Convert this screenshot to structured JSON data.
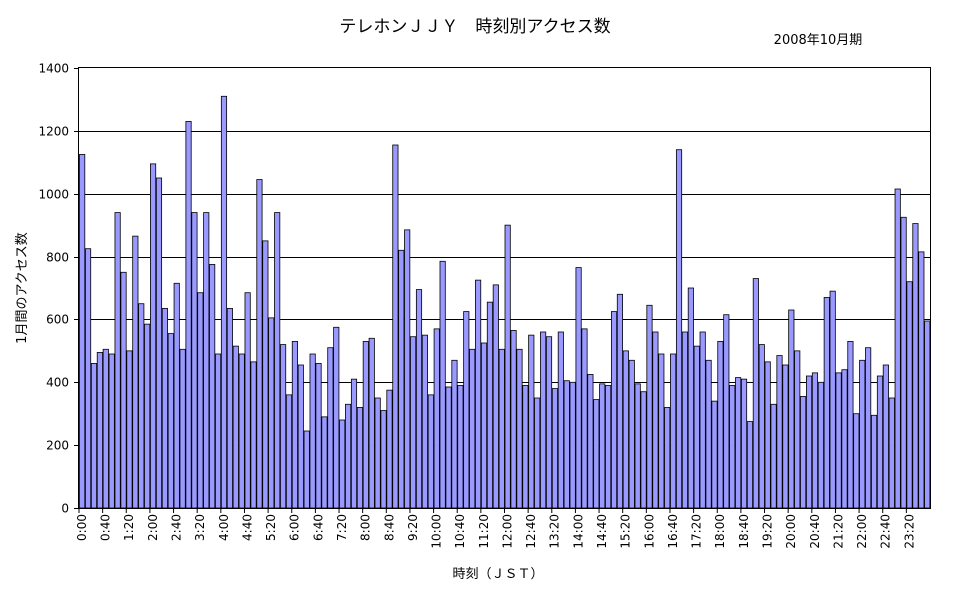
{
  "chart_data": {
    "type": "bar",
    "title": "テレホンＪＪＹ　時刻別アクセス数",
    "subtitle": "2008年10月期",
    "xlabel": "時刻（ＪＳＴ）",
    "ylabel": "1月間のアクセス数",
    "ylim": [
      0,
      1400
    ],
    "yticks": [
      0,
      200,
      400,
      600,
      800,
      1000,
      1200,
      1400
    ],
    "grid": true,
    "bar_color": "#9999ff",
    "x_tick_labels": [
      "0:00",
      "0:40",
      "1:20",
      "2:00",
      "2:40",
      "3:20",
      "4:00",
      "4:40",
      "5:20",
      "6:00",
      "6:40",
      "7:20",
      "8:00",
      "8:40",
      "9:20",
      "10:00",
      "10:40",
      "11:20",
      "12:00",
      "12:40",
      "13:20",
      "14:00",
      "14:40",
      "15:20",
      "16:00",
      "16:40",
      "17:20",
      "18:00",
      "18:40",
      "19:20",
      "20:00",
      "20:40",
      "21:20",
      "22:00",
      "22:40",
      "23:20"
    ],
    "interval_minutes": 10,
    "values": [
      1125,
      825,
      460,
      495,
      505,
      490,
      940,
      750,
      500,
      865,
      650,
      585,
      1095,
      1050,
      635,
      555,
      715,
      505,
      1230,
      940,
      685,
      940,
      775,
      490,
      1310,
      635,
      515,
      490,
      685,
      465,
      1045,
      850,
      605,
      940,
      520,
      360,
      530,
      455,
      245,
      490,
      460,
      290,
      510,
      575,
      280,
      330,
      410,
      320,
      530,
      540,
      350,
      310,
      375,
      1155,
      820,
      885,
      545,
      695,
      550,
      360,
      570,
      785,
      385,
      470,
      390,
      625,
      505,
      725,
      525,
      655,
      710,
      505,
      900,
      565,
      505,
      390,
      550,
      350,
      560,
      545,
      380,
      560,
      405,
      400,
      765,
      570,
      425,
      345,
      395,
      390,
      625,
      680,
      500,
      470,
      395,
      370,
      645,
      560,
      490,
      320,
      490,
      1140,
      560,
      700,
      515,
      560,
      470,
      340,
      530,
      615,
      390,
      415,
      410,
      275,
      730,
      520,
      465,
      330,
      485,
      455,
      630,
      500,
      355,
      420,
      430,
      400,
      670,
      690,
      430,
      440,
      530,
      300,
      470,
      510,
      295,
      420,
      455,
      350,
      1015,
      925,
      720,
      905,
      815,
      595
    ]
  }
}
